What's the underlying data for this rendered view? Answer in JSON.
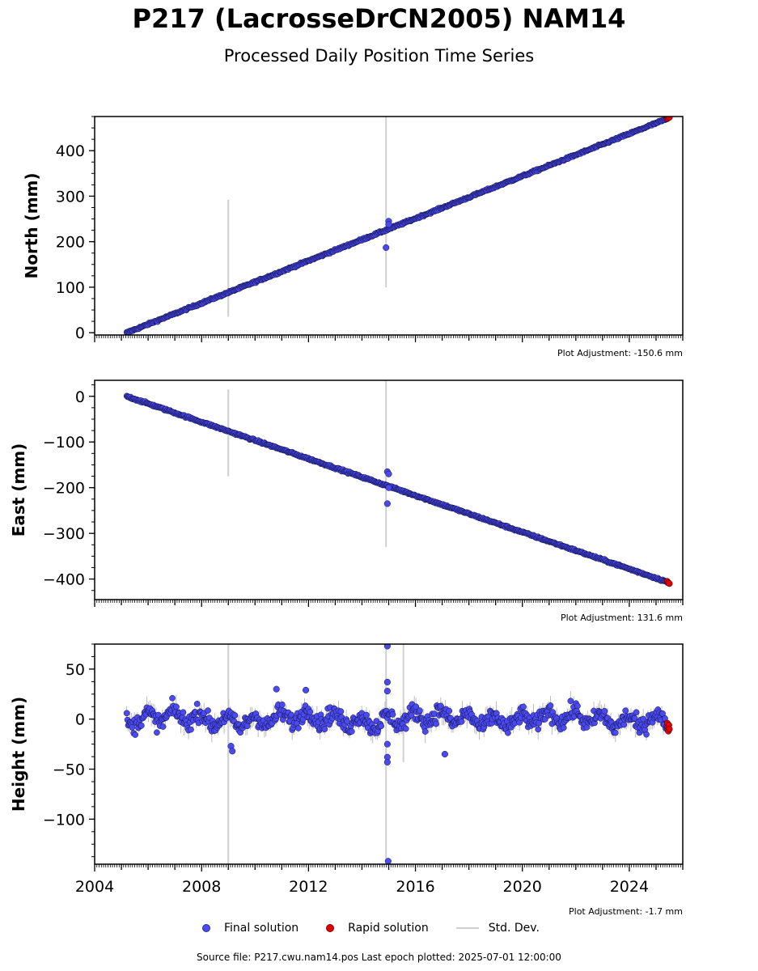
{
  "title": "P217 (LacrosseDrCN2005) NAM14",
  "subtitle": "Processed Daily Position Time Series",
  "colors": {
    "final": "#4a4af0",
    "rapid": "#e00000",
    "std_dev": "#d0d0d0"
  },
  "legend": {
    "final_label": "Final solution",
    "rapid_label": "Rapid solution",
    "std_label": "Std. Dev."
  },
  "footer": {
    "source": "Source file: P217.cwu.nam14.pos  Last epoch plotted: 2025-07-01 12:00:00"
  },
  "chart_data": [
    {
      "type": "scatter",
      "panel": "north",
      "ylabel": "North (mm)",
      "xlim": [
        2004.0,
        2026.0
      ],
      "ylim": [
        -5,
        475
      ],
      "yticks": [
        0,
        100,
        200,
        300,
        400
      ],
      "adjustment": "Plot Adjustment: -150.6 mm",
      "trend": {
        "x_start": 2005.2,
        "y_start": 0,
        "x_end": 2025.5,
        "y_end": 472,
        "scatter": 2
      },
      "spikes": [
        {
          "x": 2009.0,
          "low": 35,
          "high": 292
        },
        {
          "x": 2014.9,
          "low": 100,
          "high": 475
        }
      ],
      "outliers": [
        {
          "x": 2014.9,
          "y": 187
        },
        {
          "x": 2015.0,
          "y": 245
        },
        {
          "x": 2015.0,
          "y": 238
        }
      ],
      "rapid": [
        {
          "x": 2025.42,
          "y": 470
        },
        {
          "x": 2025.45,
          "y": 472
        },
        {
          "x": 2025.5,
          "y": 473
        }
      ]
    },
    {
      "type": "scatter",
      "panel": "east",
      "ylabel": "East (mm)",
      "xlim": [
        2004.0,
        2026.0
      ],
      "ylim": [
        -445,
        35
      ],
      "yticks": [
        0,
        -100,
        -200,
        -300,
        -400
      ],
      "adjustment": "Plot Adjustment: 131.6 mm",
      "trend": {
        "x_start": 2005.2,
        "y_start": 0,
        "x_end": 2025.5,
        "y_end": -408,
        "scatter": 2
      },
      "spikes": [
        {
          "x": 2009.0,
          "low": -175,
          "high": 15
        },
        {
          "x": 2014.9,
          "low": -330,
          "high": 35
        }
      ],
      "outliers": [
        {
          "x": 2014.95,
          "y": -235
        },
        {
          "x": 2014.95,
          "y": -165
        },
        {
          "x": 2015.0,
          "y": -170
        },
        {
          "x": 2015.0,
          "y": -200
        }
      ],
      "rapid": [
        {
          "x": 2025.42,
          "y": -405
        },
        {
          "x": 2025.47,
          "y": -408
        },
        {
          "x": 2025.5,
          "y": -410
        }
      ]
    },
    {
      "type": "scatter",
      "panel": "height",
      "ylabel": "Height (mm)",
      "xlim": [
        2004.0,
        2026.0
      ],
      "ylim": [
        -145,
        75
      ],
      "yticks": [
        50,
        0,
        -50,
        -100
      ],
      "xticks": [
        "2004",
        "2008",
        "2012",
        "2016",
        "2020",
        "2024"
      ],
      "adjustment": "Plot Adjustment: -1.7 mm",
      "trend": {
        "x_start": 2005.2,
        "y_start": 0,
        "x_end": 2025.5,
        "y_end": 0,
        "scatter": 8
      },
      "spikes": [
        {
          "x": 2009.0,
          "low": -145,
          "high": 75
        },
        {
          "x": 2014.9,
          "low": -145,
          "high": 75
        },
        {
          "x": 2015.55,
          "low": -43,
          "high": 75
        }
      ],
      "outliers": [
        {
          "x": 2009.1,
          "y": -27
        },
        {
          "x": 2009.15,
          "y": -32
        },
        {
          "x": 2014.95,
          "y": 73
        },
        {
          "x": 2014.95,
          "y": 37
        },
        {
          "x": 2014.95,
          "y": 28
        },
        {
          "x": 2014.95,
          "y": -25
        },
        {
          "x": 2014.95,
          "y": -38
        },
        {
          "x": 2014.95,
          "y": -43
        },
        {
          "x": 2014.98,
          "y": -142
        },
        {
          "x": 2017.1,
          "y": -35
        },
        {
          "x": 2011.9,
          "y": 29
        },
        {
          "x": 2010.8,
          "y": 30
        }
      ],
      "rapid": [
        {
          "x": 2025.42,
          "y": -4
        },
        {
          "x": 2025.44,
          "y": -8
        },
        {
          "x": 2025.46,
          "y": -12
        },
        {
          "x": 2025.48,
          "y": -6
        },
        {
          "x": 2025.5,
          "y": -10
        }
      ]
    }
  ]
}
